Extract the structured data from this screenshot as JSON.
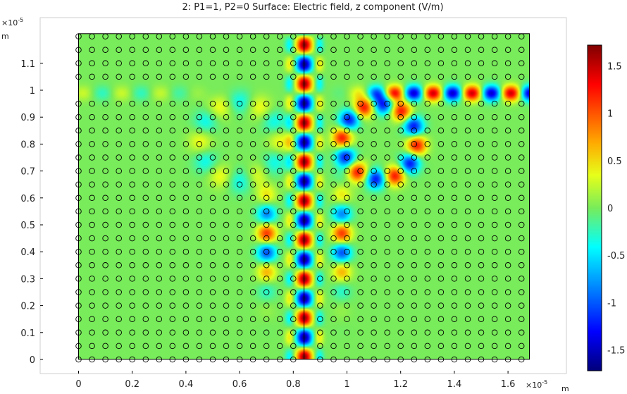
{
  "chart_data": {
    "type": "heatmap",
    "title": "2: P1=1, P2=0   Surface: Electric field, z component (V/m)",
    "x_axis": {
      "unit": "m",
      "exponent_label": "×10",
      "exponent": "-5",
      "range": [
        -0.18,
        1.81
      ],
      "ticks": [
        0,
        0.2,
        0.4,
        0.6,
        0.8,
        1,
        1.2,
        1.4,
        1.6
      ],
      "tick_labels": [
        "0",
        "0.2",
        "0.4",
        "0.6",
        "0.8",
        "1",
        "1.2",
        "1.4",
        "1.6"
      ]
    },
    "y_axis": {
      "unit": "m",
      "exponent_label": "×10",
      "exponent": "-5",
      "range": [
        -0.09,
        1.28
      ],
      "ticks": [
        0,
        0.1,
        0.2,
        0.3,
        0.4,
        0.5,
        0.6,
        0.7,
        0.8,
        0.9,
        1,
        1.1
      ],
      "tick_labels": [
        "0",
        "0.1",
        "0.2",
        "0.3",
        "0.4",
        "0.5",
        "0.6",
        "0.7",
        "0.8",
        "0.9",
        "1",
        "1.1"
      ]
    },
    "domain": {
      "x": [
        0,
        1.68
      ],
      "y": [
        0,
        1.21
      ]
    },
    "colorbar": {
      "colormap": "rainbow",
      "range": [
        -1.72,
        1.72
      ],
      "ticks": [
        1.5,
        1,
        0.5,
        0,
        -0.5,
        -1,
        -1.5
      ],
      "tick_labels": [
        "1.5",
        "1",
        "0.5",
        "0",
        "-0.5",
        "-1",
        "-1.5"
      ]
    },
    "rod_lattice": {
      "spacing": 0.05,
      "radius": 0.01
    },
    "field_features": [
      {
        "name": "vertical waveguide",
        "x": 0.84,
        "y_range": [
          0,
          1.21
        ],
        "amplitude": 1.65,
        "wavelength": 0.145
      },
      {
        "name": "horizontal waveguide",
        "y": 0.99,
        "x_range": [
          0.0,
          1.68
        ],
        "amplitude": 1.45
      },
      {
        "name": "ring resonator (left)",
        "center": [
          0.6,
          0.81
        ],
        "amplitude": 0.35
      },
      {
        "name": "ring resonator (right)",
        "center": [
          1.1,
          0.81
        ],
        "amplitude": 1.2
      },
      {
        "name": "lower coupling region",
        "y_range": [
          0.3,
          0.6
        ],
        "amplitude": 1.1
      }
    ],
    "colors": {
      "background_field": "#78ec5a",
      "axes": "#000000",
      "frame": "#cfcfcf"
    }
  }
}
